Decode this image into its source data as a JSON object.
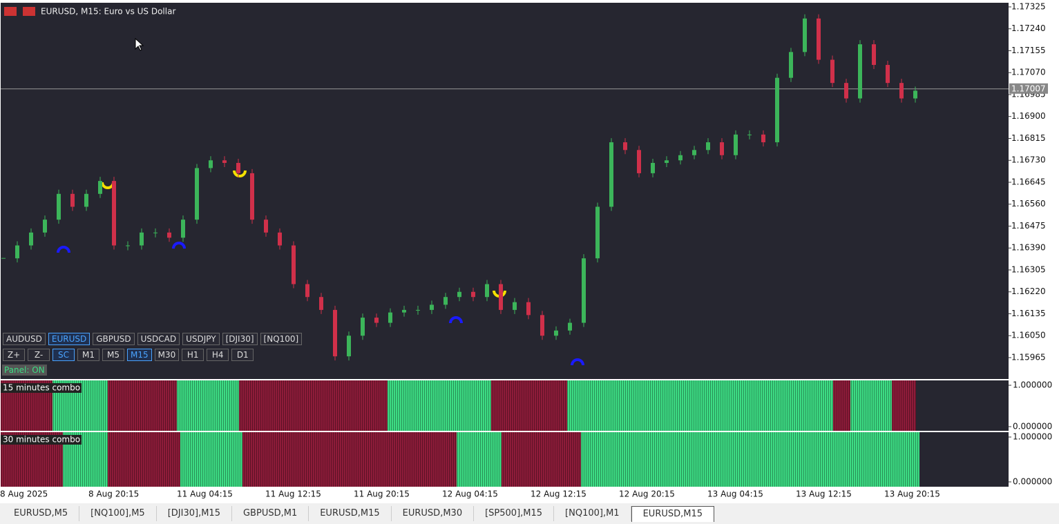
{
  "window": {
    "title": "EURUSD, M15:  Euro vs US Dollar"
  },
  "symbols": [
    "AUDUSD",
    "EURUSD",
    "GBPUSD",
    "USDCAD",
    "USDJPY",
    "[DJI30]",
    "[NQ100]"
  ],
  "active_symbol": 1,
  "controls": [
    "Z+",
    "Z-",
    "SC",
    "M1",
    "M5",
    "M15",
    "M30",
    "H1",
    "H4",
    "D1"
  ],
  "active_controls": [
    2,
    5
  ],
  "panel_status": "Panel: ON",
  "x_axis_labels": [
    "8 Aug 2025",
    "8 Aug 20:15",
    "11 Aug 04:15",
    "11 Aug 12:15",
    "11 Aug 20:15",
    "12 Aug 04:15",
    "12 Aug 12:15",
    "12 Aug 20:15",
    "13 Aug 04:15",
    "13 Aug 12:15",
    "13 Aug 20:15"
  ],
  "tabs": [
    "EURUSD,M5",
    "[NQ100],M5",
    "[DJI30],M15",
    "GBPUSD,M1",
    "EURUSD,M15",
    "EURUSD,M30",
    "[SP500],M15",
    "[NQ100],M1",
    "EURUSD,M15"
  ],
  "active_tab": 8,
  "chart_data": [
    {
      "type": "candlestick",
      "up_color": "#3cb55a",
      "down_color": "#d0304a",
      "closes": [
        1.1635,
        1.164,
        1.1645,
        1.165,
        1.166,
        1.1655,
        1.166,
        1.1665,
        1.164,
        1.164,
        1.1645,
        1.1645,
        1.1643,
        1.165,
        1.167,
        1.1673,
        1.1672,
        1.1668,
        1.165,
        1.1645,
        1.164,
        1.1625,
        1.162,
        1.1615,
        1.1597,
        1.1605,
        1.1612,
        1.161,
        1.1614,
        1.1615,
        1.1615,
        1.1617,
        1.162,
        1.1622,
        1.162,
        1.1625,
        1.1615,
        1.1618,
        1.1613,
        1.1605,
        1.1607,
        1.161,
        1.1635,
        1.1655,
        1.168,
        1.1677,
        1.1668,
        1.1672,
        1.1673,
        1.1675,
        1.1677,
        1.168,
        1.1675,
        1.1683,
        1.1683,
        1.168,
        1.1705,
        1.1715,
        1.1728,
        1.1712,
        1.1703,
        1.1697,
        1.1718,
        1.171,
        1.1703,
        1.1697,
        1.17
      ],
      "ylim": [
        1.15882,
        1.17341
      ],
      "yticks": [
        {
          "value": 1.15965,
          "label": "1.15965"
        },
        {
          "value": 1.1605,
          "label": "1.16050"
        },
        {
          "value": 1.16135,
          "label": "1.16135"
        },
        {
          "value": 1.1622,
          "label": "1.16220"
        },
        {
          "value": 1.16305,
          "label": "1.16305"
        },
        {
          "value": 1.1639,
          "label": "1.16390"
        },
        {
          "value": 1.16475,
          "label": "1.16475"
        },
        {
          "value": 1.1656,
          "label": "1.16560"
        },
        {
          "value": 1.16645,
          "label": "1.16645"
        },
        {
          "value": 1.1673,
          "label": "1.16730"
        },
        {
          "value": 1.16815,
          "label": "1.16815"
        },
        {
          "value": 1.169,
          "label": "1.16900"
        },
        {
          "value": 1.16985,
          "label": "1.16985"
        },
        {
          "value": 1.1707,
          "label": "1.17070"
        },
        {
          "value": 1.17155,
          "label": "1.17155"
        },
        {
          "value": 1.1724,
          "label": "1.17240"
        },
        {
          "value": 1.17325,
          "label": "1.17325"
        }
      ],
      "current_price": 1.17007
    },
    {
      "type": "state-bars",
      "title": "15 minutes combo",
      "bull_color": "#3ddc84",
      "bear_color": "#8e1c3a",
      "segments": [
        {
          "state": "bear",
          "bars": 15
        },
        {
          "state": "bull",
          "bars": 16
        },
        {
          "state": "bear",
          "bars": 20
        },
        {
          "state": "bull",
          "bars": 18
        },
        {
          "state": "bear",
          "bars": 43
        },
        {
          "state": "bull",
          "bars": 30
        },
        {
          "state": "bear",
          "bars": 22
        },
        {
          "state": "bull",
          "bars": 77
        },
        {
          "state": "bear",
          "bars": 5
        },
        {
          "state": "bull",
          "bars": 12
        },
        {
          "state": "bear",
          "bars": 7
        }
      ],
      "ylim": [
        -0.1,
        1.117
      ],
      "yticks": [
        {
          "value": 1,
          "label": "1.000000"
        },
        {
          "value": 0,
          "label": "0.000000"
        }
      ]
    },
    {
      "type": "state-bars",
      "title": "30 minutes combo",
      "bull_color": "#3ddc84",
      "bear_color": "#8e1c3a",
      "segments": [
        {
          "state": "bear",
          "bars": 18
        },
        {
          "state": "bull",
          "bars": 13
        },
        {
          "state": "bear",
          "bars": 21
        },
        {
          "state": "bull",
          "bars": 18
        },
        {
          "state": "bear",
          "bars": 62
        },
        {
          "state": "bull",
          "bars": 13
        },
        {
          "state": "bear",
          "bars": 23
        },
        {
          "state": "bull",
          "bars": 98
        }
      ],
      "ylim": [
        -0.108,
        1.108
      ],
      "yticks": [
        {
          "value": 1,
          "label": "1.000000"
        },
        {
          "value": 0,
          "label": "0.000000"
        }
      ]
    }
  ]
}
